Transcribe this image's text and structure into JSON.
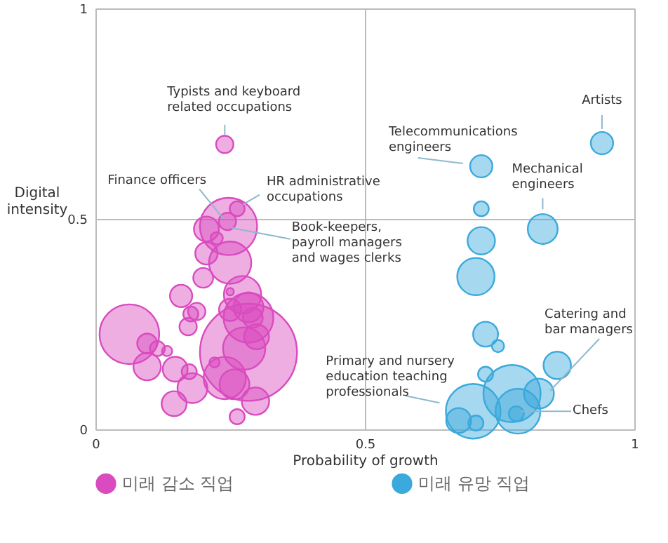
{
  "chart_data": {
    "type": "bubble",
    "xlabel": "Probability of growth",
    "ylabel": "Digital intensity",
    "xlim": [
      0,
      1
    ],
    "ylim": [
      0,
      1
    ],
    "xticks": [
      0,
      0.5,
      1
    ],
    "yticks": [
      0,
      0.5,
      1
    ],
    "grid": true,
    "legend": "bottom",
    "marker": "circle",
    "series": [
      {
        "name": "미래 감소 직업",
        "color": "#d94bbf",
        "x": [
          0.24,
          0.263,
          0.247,
          0.245,
          0.206,
          0.225,
          0.206,
          0.25,
          0.2,
          0.273,
          0.284,
          0.292,
          0.159,
          0.177,
          0.172,
          0.063,
          0.096,
          0.115,
          0.133,
          0.096,
          0.148,
          0.25,
          0.284,
          0.146,
          0.18,
          0.174,
          0.24,
          0.258,
          0.276,
          0.299,
          0.297,
          0.263,
          0.221,
          0.188,
          0.25,
          0.284
        ],
        "values": [
          0.677,
          0.524,
          0.482,
          0.494,
          0.476,
          0.454,
          0.418,
          0.396,
          0.36,
          0.32,
          0.29,
          0.265,
          0.317,
          0.274,
          0.244,
          0.226,
          0.204,
          0.192,
          0.186,
          0.149,
          0.143,
          0.327,
          0.183,
          0.061,
          0.098,
          0.137,
          0.122,
          0.107,
          0.192,
          0.22,
          0.067,
          0.03,
          0.159,
          0.28,
          0.284,
          0.265
        ],
        "sizes": [
          0.032,
          0.024,
          0.348,
          0.032,
          0.066,
          0.016,
          0.053,
          0.19,
          0.042,
          0.148,
          0.095,
          0.042,
          0.053,
          0.024,
          0.032,
          0.379,
          0.042,
          0.024,
          0.011,
          0.08,
          0.066,
          0.006,
          1,
          0.066,
          0.095,
          0.024,
          0.19,
          0.095,
          0.19,
          0.066,
          0.08,
          0.024,
          0.011,
          0.032,
          0.053,
          0.263
        ]
      },
      {
        "name": "미래 유망 직업",
        "color": "#3aa9dc",
        "x": [
          0.94,
          0.716,
          0.716,
          0.83,
          0.716,
          0.706,
          0.724,
          0.747,
          0.857,
          0.724,
          0.823,
          0.701,
          0.773,
          0.784,
          0.781,
          0.706,
          0.674
        ],
        "values": [
          0.68,
          0.625,
          0.524,
          0.476,
          0.448,
          0.363,
          0.226,
          0.198,
          0.152,
          0.131,
          0.085,
          0.043,
          0.085,
          0.043,
          0.037,
          0.015,
          0.021
        ],
        "sizes": [
          0.053,
          0.053,
          0.024,
          0.095,
          0.08,
          0.148,
          0.066,
          0.016,
          0.08,
          0.024,
          0.095,
          0.318,
          0.348,
          0.213,
          0.024,
          0.024,
          0.066
        ]
      }
    ],
    "annotations": [
      {
        "text": "Typists and keyboard related occupations",
        "x": 0.24,
        "y": 0.677
      },
      {
        "text": "Finance officers",
        "x": 0.245,
        "y": 0.494
      },
      {
        "text": "HR administrative occupations",
        "x": 0.263,
        "y": 0.524
      },
      {
        "text": "Book-keepers, payroll managers and wages clerks",
        "x": 0.247,
        "y": 0.482
      },
      {
        "text": "Telecommunications engineers",
        "x": 0.716,
        "y": 0.625
      },
      {
        "text": "Artists",
        "x": 0.94,
        "y": 0.68
      },
      {
        "text": "Mechanical engineers",
        "x": 0.83,
        "y": 0.476
      },
      {
        "text": "Catering and bar managers",
        "x": 0.823,
        "y": 0.085
      },
      {
        "text": "Chefs",
        "x": 0.784,
        "y": 0.043
      },
      {
        "text": "Primary and nursery education teaching professionals",
        "x": 0.701,
        "y": 0.043
      }
    ]
  }
}
